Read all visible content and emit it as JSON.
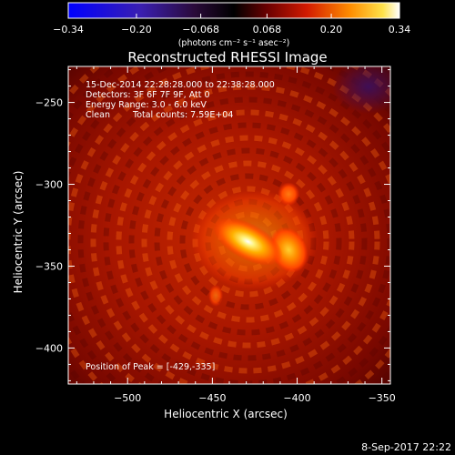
{
  "chart_data": {
    "type": "heatmap",
    "title": "Reconstructed RHESSI Image",
    "xlabel": "Heliocentric X (arcsec)",
    "ylabel": "Heliocentric Y (arcsec)",
    "xlim": [
      -535,
      -345
    ],
    "ylim": [
      -422,
      -228
    ],
    "xticks": [
      -500,
      -450,
      -400,
      -350
    ],
    "yticks": [
      -400,
      -350,
      -300,
      -250
    ],
    "colorbar": {
      "min": -0.34,
      "max": 0.34,
      "ticks": [
        -0.34,
        -0.2,
        -0.068,
        0.068,
        0.2,
        0.34
      ],
      "tick_labels": [
        "−0.34",
        "−0.20",
        "−0.068",
        "0.068",
        "0.20",
        "0.34"
      ],
      "unit_label": "(photons cm⁻² s⁻¹ asec⁻²)"
    },
    "sources": [
      {
        "x": -429,
        "y": -335,
        "peak": 0.34
      },
      {
        "x": -405,
        "y": -340,
        "peak": 0.24
      },
      {
        "x": -405,
        "y": -306,
        "peak": 0.17
      },
      {
        "x": -448,
        "y": -368,
        "peak": 0.12
      }
    ],
    "annotations": {
      "time_range": "15-Dec-2014 22:28:28.000 to 22:38:28.000",
      "detectors": "Detectors: 3F 6F 7F 9F, Att 0",
      "energy": "Energy Range: 3.0 - 6.0 keV",
      "method": "Clean",
      "total_counts": "Total counts: 7.59E+04",
      "peak_position": "Position of Peak = [-429,-335]"
    },
    "timestamp": "8-Sep-2017 22:22"
  }
}
